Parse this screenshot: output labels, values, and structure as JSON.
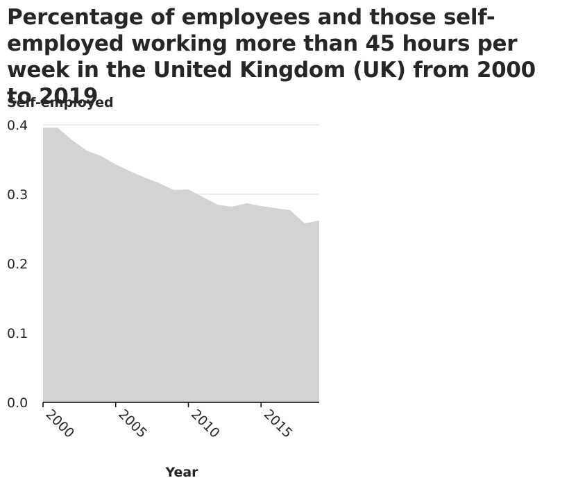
{
  "chart_data": {
    "type": "area",
    "title": "Percentage of employees and those self-employed working more than 45 hours per week in the United Kingdom (UK) from 2000 to 2019",
    "xlabel": "Year",
    "ylabel": "Self-employed",
    "x": [
      2000,
      2001,
      2002,
      2003,
      2004,
      2005,
      2006,
      2007,
      2008,
      2009,
      2010,
      2011,
      2012,
      2013,
      2014,
      2015,
      2016,
      2017,
      2018,
      2019
    ],
    "values": [
      0.396,
      0.396,
      0.378,
      0.363,
      0.355,
      0.343,
      0.333,
      0.324,
      0.316,
      0.306,
      0.307,
      0.296,
      0.285,
      0.282,
      0.287,
      0.283,
      0.28,
      0.277,
      0.258,
      0.262
    ],
    "xlim": [
      2000,
      2019
    ],
    "ylim": [
      0,
      0.4
    ],
    "xticks": [
      2000,
      2005,
      2010,
      2015
    ],
    "xtick_labels": [
      "2000",
      "2005",
      "2010",
      "2015"
    ],
    "yticks": [
      0.0,
      0.1,
      0.2,
      0.3,
      0.4
    ],
    "ytick_labels": [
      "0.0",
      "0.1",
      "0.2",
      "0.3",
      "0.4"
    ],
    "grid": true,
    "colors": {
      "fill": "#d3d3d3",
      "grid": "#dcdcdc",
      "axis": "#000000"
    }
  }
}
